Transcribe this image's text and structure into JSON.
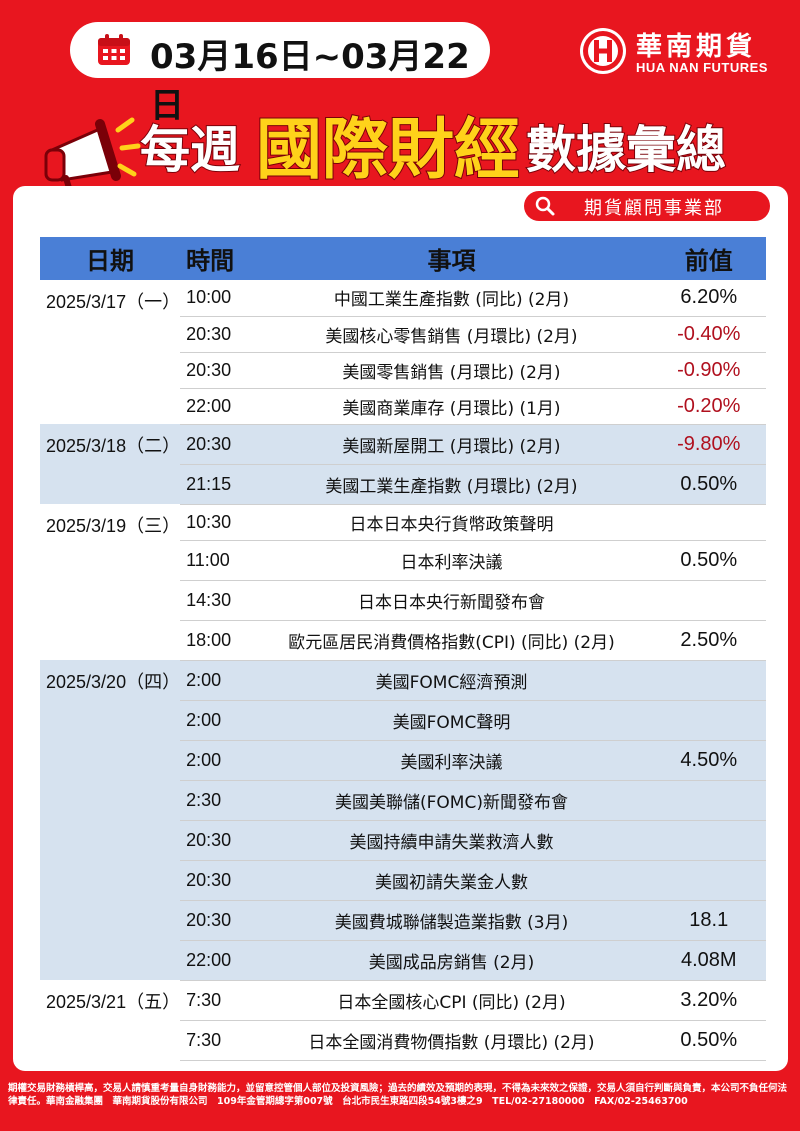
{
  "header": {
    "date_range": "03月16日~03月22日",
    "title_part1": "每週",
    "title_part2": "國際財經",
    "title_part3": "數據彙總",
    "department": "期貨顧問事業部",
    "icons": {
      "calendar": "calendar-icon",
      "megaphone": "megaphone-icon",
      "search": "search-icon"
    }
  },
  "logo": {
    "name_cn": "華南期貨",
    "name_en": "HUA NAN FUTURES",
    "color": "#e8161f"
  },
  "table": {
    "headers": {
      "date": "日期",
      "time": "時間",
      "item": "事項",
      "previous": "前值"
    },
    "groups": [
      {
        "date": "2025/3/17（一）",
        "rows": [
          {
            "time": "10:00",
            "item": "中國工業生產指數 (同比) (2月)",
            "previous": "6.20%"
          },
          {
            "time": "20:30",
            "item": "美國核心零售銷售 (月環比) (2月)",
            "previous": "-0.40%"
          },
          {
            "time": "20:30",
            "item": "美國零售銷售 (月環比) (2月)",
            "previous": "-0.90%"
          },
          {
            "time": "22:00",
            "item": "美國商業庫存 (月環比) (1月)",
            "previous": "-0.20%"
          }
        ]
      },
      {
        "date": "2025/3/18（二）",
        "rows": [
          {
            "time": "20:30",
            "item": "美國新屋開工 (月環比) (2月)",
            "previous": "-9.80%"
          },
          {
            "time": "21:15",
            "item": "美國工業生產指數 (月環比) (2月)",
            "previous": "0.50%"
          }
        ]
      },
      {
        "date": "2025/3/19（三）",
        "rows": [
          {
            "time": "10:30",
            "item": "日本日本央行貨幣政策聲明",
            "previous": ""
          },
          {
            "time": "11:00",
            "item": "日本利率決議",
            "previous": "0.50%"
          },
          {
            "time": "14:30",
            "item": "日本日本央行新聞發布會",
            "previous": ""
          },
          {
            "time": "18:00",
            "item": "歐元區居民消費價格指數(CPI) (同比) (2月)",
            "previous": "2.50%"
          }
        ]
      },
      {
        "date": "2025/3/20（四）",
        "rows": [
          {
            "time": "2:00",
            "item": "美國FOMC經濟預測",
            "previous": ""
          },
          {
            "time": "2:00",
            "item": "美國FOMC聲明",
            "previous": ""
          },
          {
            "time": "2:00",
            "item": "美國利率決議",
            "previous": "4.50%"
          },
          {
            "time": "2:30",
            "item": "美國美聯儲(FOMC)新聞發布會",
            "previous": ""
          },
          {
            "time": "20:30",
            "item": "美國持續申請失業救濟人數",
            "previous": ""
          },
          {
            "time": "20:30",
            "item": "美國初請失業金人數",
            "previous": ""
          },
          {
            "time": "20:30",
            "item": "美國費城聯儲製造業指數 (3月)",
            "previous": "18.1"
          },
          {
            "time": "22:00",
            "item": "美國成品房銷售 (2月)",
            "previous": "4.08M"
          }
        ]
      },
      {
        "date": "2025/3/21（五）",
        "rows": [
          {
            "time": "7:30",
            "item": "日本全國核心CPI (同比) (2月)",
            "previous": "3.20%"
          },
          {
            "time": "7:30",
            "item": "日本全國消費物價指數 (月環比) (2月)",
            "previous": "0.50%"
          }
        ]
      }
    ]
  },
  "footer": {
    "disclaimer": "期權交易財務槓桿高，交易人請慎重考量自身財務能力，並留意控管個人部位及投資風險；過去的績效及預期的表現，不得為未來效之保證，交易人須自行判斷與負責，本公司不負任何法律責任。華南金融集團　華南期貨股份有限公司　109年金管期總字第007號　台北市民生東路四段54號3樓之9　TEL/02-27180000　FAX/02-25463700"
  }
}
